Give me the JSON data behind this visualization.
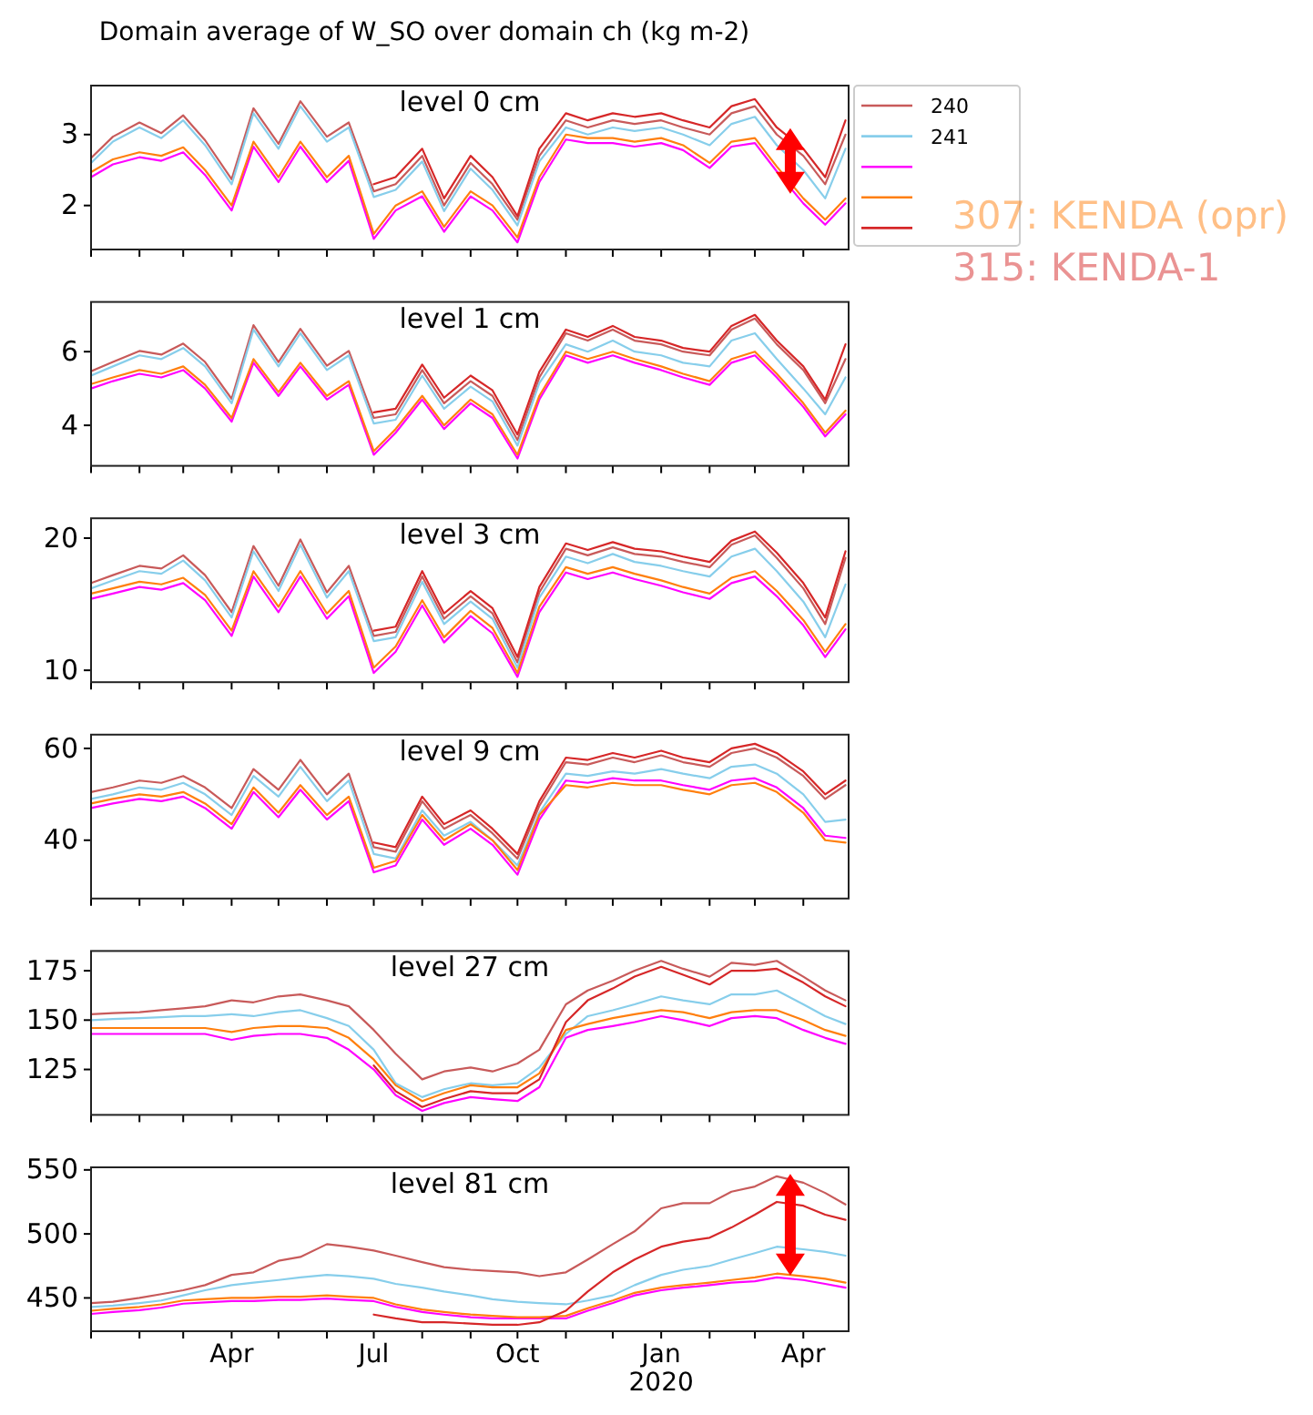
{
  "chart_data": [
    {
      "type": "line",
      "title": "Domain average of W_SO over domain ch (kg m-2)",
      "subtitle": "level 0 cm",
      "legend": "right",
      "tick_labels": "y",
      "x": [
        "2019-01-01",
        "2019-01-15",
        "2019-02-01",
        "2019-02-15",
        "2019-03-01",
        "2019-03-15",
        "2019-04-01",
        "2019-04-15",
        "2019-05-01",
        "2019-05-15",
        "2019-06-01",
        "2019-06-15",
        "2019-07-01",
        "2019-07-15",
        "2019-08-01",
        "2019-08-15",
        "2019-09-01",
        "2019-09-15",
        "2019-10-01",
        "2019-10-15",
        "2019-11-01",
        "2019-11-15",
        "2019-12-01",
        "2019-12-15",
        "2020-01-01",
        "2020-01-15",
        "2020-02-01",
        "2020-02-15",
        "2020-03-01",
        "2020-03-15",
        "2020-04-01",
        "2020-04-15",
        "2020-04-28"
      ],
      "xlim": [
        "2019-01-01",
        "2020-04-30"
      ],
      "xticks": [
        {
          "value": "2019-01-01",
          "label": null
        },
        {
          "value": "2019-02-01",
          "label": null
        },
        {
          "value": "2019-03-01",
          "label": null
        },
        {
          "value": "2019-04-01",
          "label": null
        },
        {
          "value": "2019-05-01",
          "label": null
        },
        {
          "value": "2019-06-01",
          "label": null
        },
        {
          "value": "2019-07-01",
          "label": null
        },
        {
          "value": "2019-08-01",
          "label": null
        },
        {
          "value": "2019-09-01",
          "label": null
        },
        {
          "value": "2019-10-01",
          "label": null
        },
        {
          "value": "2019-11-01",
          "label": null
        },
        {
          "value": "2019-12-01",
          "label": null
        },
        {
          "value": "2020-01-01",
          "label": null
        },
        {
          "value": "2020-02-01",
          "label": null
        },
        {
          "value": "2020-03-01",
          "label": null
        },
        {
          "value": "2020-04-01",
          "label": null
        }
      ],
      "ylim": [
        1.38,
        3.69
      ],
      "yticks": [
        2,
        3
      ],
      "series": [
        {
          "name": "240",
          "color": "#c85a5a",
          "values": [
            2.67,
            2.97,
            3.17,
            3.02,
            3.27,
            2.92,
            2.37,
            3.37,
            2.87,
            3.47,
            2.97,
            3.17,
            2.2,
            2.3,
            2.7,
            2.0,
            2.6,
            2.3,
            1.8,
            2.7,
            3.2,
            3.1,
            3.2,
            3.15,
            3.2,
            3.1,
            3.0,
            3.3,
            3.4,
            3.0,
            2.7,
            2.3,
            3.0
          ]
        },
        {
          "name": "241",
          "color": "#87ceeb",
          "values": [
            2.6,
            2.9,
            3.1,
            2.95,
            3.2,
            2.85,
            2.3,
            3.3,
            2.8,
            3.4,
            2.9,
            3.1,
            2.12,
            2.22,
            2.62,
            1.92,
            2.52,
            2.22,
            1.72,
            2.62,
            3.1,
            3.0,
            3.1,
            3.05,
            3.1,
            3.0,
            2.85,
            3.15,
            3.25,
            2.85,
            2.5,
            2.1,
            2.8
          ]
        },
        {
          "color": "#ff00ff",
          "values": [
            2.4,
            2.58,
            2.68,
            2.63,
            2.75,
            2.43,
            1.93,
            2.83,
            2.33,
            2.83,
            2.33,
            2.63,
            1.53,
            1.93,
            2.13,
            1.63,
            2.13,
            1.93,
            1.48,
            2.33,
            2.93,
            2.88,
            2.88,
            2.83,
            2.88,
            2.78,
            2.53,
            2.83,
            2.88,
            2.48,
            2.03,
            1.73,
            2.03
          ]
        },
        {
          "name": "307: KENDA (opr)",
          "color": "#ff7f0e",
          "values": [
            2.47,
            2.65,
            2.75,
            2.7,
            2.82,
            2.5,
            2.0,
            2.9,
            2.4,
            2.9,
            2.4,
            2.7,
            1.6,
            2.0,
            2.2,
            1.7,
            2.2,
            2.0,
            1.55,
            2.4,
            3.0,
            2.95,
            2.95,
            2.9,
            2.95,
            2.85,
            2.6,
            2.9,
            2.95,
            2.55,
            2.1,
            1.8,
            2.1
          ]
        },
        {
          "name": "315: KENDA-1",
          "color": "#d62728",
          "values": [
            null,
            null,
            null,
            null,
            null,
            null,
            null,
            null,
            null,
            null,
            null,
            null,
            2.3,
            2.4,
            2.8,
            2.1,
            2.7,
            2.4,
            1.85,
            2.8,
            3.3,
            3.2,
            3.3,
            3.25,
            3.3,
            3.2,
            3.1,
            3.4,
            3.5,
            3.1,
            2.8,
            2.4,
            3.2
          ]
        }
      ]
    },
    {
      "type": "line",
      "subtitle": "level 1 cm",
      "tick_labels": "y",
      "x": [
        "2019-01-01",
        "2019-01-15",
        "2019-02-01",
        "2019-02-15",
        "2019-03-01",
        "2019-03-15",
        "2019-04-01",
        "2019-04-15",
        "2019-05-01",
        "2019-05-15",
        "2019-06-01",
        "2019-06-15",
        "2019-07-01",
        "2019-07-15",
        "2019-08-01",
        "2019-08-15",
        "2019-09-01",
        "2019-09-15",
        "2019-10-01",
        "2019-10-15",
        "2019-11-01",
        "2019-11-15",
        "2019-12-01",
        "2019-12-15",
        "2020-01-01",
        "2020-01-15",
        "2020-02-01",
        "2020-02-15",
        "2020-03-01",
        "2020-03-15",
        "2020-04-01",
        "2020-04-15",
        "2020-04-28"
      ],
      "xlim": [
        "2019-01-01",
        "2020-04-30"
      ],
      "xticks": [
        {
          "value": "2019-01-01",
          "label": null
        },
        {
          "value": "2019-02-01",
          "label": null
        },
        {
          "value": "2019-03-01",
          "label": null
        },
        {
          "value": "2019-04-01",
          "label": null
        },
        {
          "value": "2019-05-01",
          "label": null
        },
        {
          "value": "2019-06-01",
          "label": null
        },
        {
          "value": "2019-07-01",
          "label": null
        },
        {
          "value": "2019-08-01",
          "label": null
        },
        {
          "value": "2019-09-01",
          "label": null
        },
        {
          "value": "2019-10-01",
          "label": null
        },
        {
          "value": "2019-11-01",
          "label": null
        },
        {
          "value": "2019-12-01",
          "label": null
        },
        {
          "value": "2020-01-01",
          "label": null
        },
        {
          "value": "2020-02-01",
          "label": null
        },
        {
          "value": "2020-03-01",
          "label": null
        },
        {
          "value": "2020-04-01",
          "label": null
        }
      ],
      "ylim": [
        2.9,
        7.35
      ],
      "yticks": [
        4,
        6
      ],
      "series": [
        {
          "color": "#c85a5a",
          "values": [
            5.47,
            5.72,
            6.02,
            5.92,
            6.22,
            5.72,
            4.72,
            6.72,
            5.72,
            6.62,
            5.62,
            6.02,
            4.2,
            4.3,
            5.5,
            4.6,
            5.2,
            4.8,
            3.6,
            5.3,
            6.5,
            6.3,
            6.6,
            6.3,
            6.2,
            6.0,
            5.9,
            6.6,
            6.9,
            6.2,
            5.5,
            4.6,
            5.8
          ]
        },
        {
          "color": "#87ceeb",
          "values": [
            5.35,
            5.6,
            5.9,
            5.8,
            6.1,
            5.6,
            4.6,
            6.6,
            5.6,
            6.5,
            5.5,
            5.9,
            4.05,
            4.15,
            5.35,
            4.45,
            5.05,
            4.65,
            3.45,
            5.15,
            6.2,
            6.0,
            6.3,
            6.0,
            5.9,
            5.7,
            5.6,
            6.3,
            6.5,
            5.8,
            5.0,
            4.3,
            5.3
          ]
        },
        {
          "color": "#ff00ff",
          "values": [
            5.0,
            5.2,
            5.4,
            5.3,
            5.5,
            5.0,
            4.1,
            5.7,
            4.8,
            5.6,
            4.7,
            5.1,
            3.2,
            3.8,
            4.7,
            3.9,
            4.6,
            4.2,
            3.1,
            4.7,
            5.9,
            5.7,
            5.9,
            5.7,
            5.5,
            5.3,
            5.1,
            5.7,
            5.9,
            5.3,
            4.5,
            3.7,
            4.3
          ]
        },
        {
          "color": "#ff7f0e",
          "values": [
            5.12,
            5.3,
            5.5,
            5.4,
            5.6,
            5.1,
            4.2,
            5.8,
            4.9,
            5.7,
            4.8,
            5.2,
            3.3,
            3.9,
            4.8,
            4.0,
            4.7,
            4.3,
            3.2,
            4.8,
            6.0,
            5.8,
            6.0,
            5.8,
            5.6,
            5.4,
            5.2,
            5.8,
            6.0,
            5.4,
            4.6,
            3.8,
            4.4
          ]
        },
        {
          "color": "#d62728",
          "values": [
            null,
            null,
            null,
            null,
            null,
            null,
            null,
            null,
            null,
            null,
            null,
            null,
            4.35,
            4.45,
            5.65,
            4.75,
            5.35,
            4.95,
            3.75,
            5.45,
            6.6,
            6.4,
            6.7,
            6.4,
            6.3,
            6.1,
            6.0,
            6.7,
            7.0,
            6.3,
            5.6,
            4.7,
            6.2
          ]
        }
      ]
    },
    {
      "type": "line",
      "subtitle": "level 3 cm",
      "tick_labels": "y",
      "x": [
        "2019-01-01",
        "2019-01-15",
        "2019-02-01",
        "2019-02-15",
        "2019-03-01",
        "2019-03-15",
        "2019-04-01",
        "2019-04-15",
        "2019-05-01",
        "2019-05-15",
        "2019-06-01",
        "2019-06-15",
        "2019-07-01",
        "2019-07-15",
        "2019-08-01",
        "2019-08-15",
        "2019-09-01",
        "2019-09-15",
        "2019-10-01",
        "2019-10-15",
        "2019-11-01",
        "2019-11-15",
        "2019-12-01",
        "2019-12-15",
        "2020-01-01",
        "2020-01-15",
        "2020-02-01",
        "2020-02-15",
        "2020-03-01",
        "2020-03-15",
        "2020-04-01",
        "2020-04-15",
        "2020-04-28"
      ],
      "xlim": [
        "2019-01-01",
        "2020-04-30"
      ],
      "xticks": [
        {
          "value": "2019-01-01",
          "label": null
        },
        {
          "value": "2019-02-01",
          "label": null
        },
        {
          "value": "2019-03-01",
          "label": null
        },
        {
          "value": "2019-04-01",
          "label": null
        },
        {
          "value": "2019-05-01",
          "label": null
        },
        {
          "value": "2019-06-01",
          "label": null
        },
        {
          "value": "2019-07-01",
          "label": null
        },
        {
          "value": "2019-08-01",
          "label": null
        },
        {
          "value": "2019-09-01",
          "label": null
        },
        {
          "value": "2019-10-01",
          "label": null
        },
        {
          "value": "2019-11-01",
          "label": null
        },
        {
          "value": "2019-12-01",
          "label": null
        },
        {
          "value": "2020-01-01",
          "label": null
        },
        {
          "value": "2020-02-01",
          "label": null
        },
        {
          "value": "2020-03-01",
          "label": null
        },
        {
          "value": "2020-04-01",
          "label": null
        }
      ],
      "ylim": [
        9.1,
        21.5
      ],
      "yticks": [
        10,
        20
      ],
      "series": [
        {
          "color": "#c85a5a",
          "values": [
            16.6,
            17.2,
            17.9,
            17.7,
            18.7,
            17.2,
            14.4,
            19.4,
            16.4,
            19.9,
            15.9,
            17.9,
            12.6,
            12.9,
            17.1,
            13.9,
            15.6,
            14.3,
            10.6,
            15.9,
            19.2,
            18.7,
            19.3,
            18.8,
            18.6,
            18.2,
            17.8,
            19.5,
            20.2,
            18.5,
            16.2,
            13.5,
            18.5
          ]
        },
        {
          "color": "#87ceeb",
          "values": [
            16.2,
            16.8,
            17.5,
            17.3,
            18.3,
            16.8,
            14,
            19,
            16,
            19.5,
            15.5,
            17.5,
            12.2,
            12.5,
            16.7,
            13.5,
            15.2,
            13.9,
            10.2,
            15.5,
            18.6,
            18.1,
            18.8,
            18.2,
            17.9,
            17.5,
            17.1,
            18.6,
            19.2,
            17.5,
            15.2,
            12.5,
            16.5
          ]
        },
        {
          "color": "#ff00ff",
          "values": [
            15.4,
            15.8,
            16.3,
            16.1,
            16.6,
            15.3,
            12.6,
            17.1,
            14.4,
            17.1,
            13.9,
            15.6,
            9.8,
            11.4,
            14.9,
            12.1,
            14.1,
            12.8,
            9.5,
            14.4,
            17.4,
            16.9,
            17.4,
            16.9,
            16.4,
            15.9,
            15.4,
            16.6,
            17.1,
            15.6,
            13.4,
            11.0,
            13.1
          ]
        },
        {
          "color": "#ff7f0e",
          "values": [
            15.8,
            16.2,
            16.7,
            16.5,
            17,
            15.7,
            13,
            17.5,
            14.8,
            17.5,
            14.3,
            16,
            10.2,
            11.8,
            15.3,
            12.5,
            14.5,
            13.2,
            9.8,
            14.8,
            17.8,
            17.3,
            17.8,
            17.3,
            16.8,
            16.3,
            15.8,
            17,
            17.5,
            16,
            13.8,
            11.4,
            13.5
          ]
        },
        {
          "color": "#d62728",
          "values": [
            null,
            null,
            null,
            null,
            null,
            null,
            null,
            null,
            null,
            null,
            null,
            null,
            13.0,
            13.3,
            17.5,
            14.3,
            16.0,
            14.7,
            11.0,
            16.3,
            19.6,
            19.1,
            19.7,
            19.2,
            19,
            18.6,
            18.2,
            19.8,
            20.5,
            18.9,
            16.6,
            14,
            19
          ]
        }
      ]
    },
    {
      "type": "line",
      "subtitle": "level 9 cm",
      "tick_labels": "y",
      "x": [
        "2019-01-01",
        "2019-01-15",
        "2019-02-01",
        "2019-02-15",
        "2019-03-01",
        "2019-03-15",
        "2019-04-01",
        "2019-04-15",
        "2019-05-01",
        "2019-05-15",
        "2019-06-01",
        "2019-06-15",
        "2019-07-01",
        "2019-07-15",
        "2019-08-01",
        "2019-08-15",
        "2019-09-01",
        "2019-09-15",
        "2019-10-01",
        "2019-10-15",
        "2019-11-01",
        "2019-11-15",
        "2019-12-01",
        "2019-12-15",
        "2020-01-01",
        "2020-01-15",
        "2020-02-01",
        "2020-02-15",
        "2020-03-01",
        "2020-03-15",
        "2020-04-01",
        "2020-04-15",
        "2020-04-28"
      ],
      "xlim": [
        "2019-01-01",
        "2020-04-30"
      ],
      "xticks": [
        {
          "value": "2019-01-01",
          "label": null
        },
        {
          "value": "2019-02-01",
          "label": null
        },
        {
          "value": "2019-03-01",
          "label": null
        },
        {
          "value": "2019-04-01",
          "label": null
        },
        {
          "value": "2019-05-01",
          "label": null
        },
        {
          "value": "2019-06-01",
          "label": null
        },
        {
          "value": "2019-07-01",
          "label": null
        },
        {
          "value": "2019-08-01",
          "label": null
        },
        {
          "value": "2019-09-01",
          "label": null
        },
        {
          "value": "2019-10-01",
          "label": null
        },
        {
          "value": "2019-11-01",
          "label": null
        },
        {
          "value": "2019-12-01",
          "label": null
        },
        {
          "value": "2020-01-01",
          "label": null
        },
        {
          "value": "2020-02-01",
          "label": null
        },
        {
          "value": "2020-03-01",
          "label": null
        },
        {
          "value": "2020-04-01",
          "label": null
        }
      ],
      "ylim": [
        27.3,
        63
      ],
      "yticks": [
        40,
        60
      ],
      "series": [
        {
          "color": "#c85a5a",
          "values": [
            50.5,
            51.5,
            53,
            52.5,
            54,
            51.5,
            47,
            55.5,
            51,
            57.5,
            50,
            54.5,
            38.5,
            37.5,
            48.5,
            42.5,
            45.5,
            41.5,
            36,
            47.5,
            57,
            56.5,
            58,
            57,
            58.5,
            57,
            56,
            59,
            60,
            58,
            54,
            49,
            52
          ]
        },
        {
          "color": "#87ceeb",
          "values": [
            49,
            50,
            51.5,
            51,
            52.5,
            50,
            45.5,
            54,
            49.5,
            56,
            48.5,
            53,
            37,
            36,
            46.5,
            41,
            44,
            40,
            34.5,
            46,
            54.5,
            54,
            55,
            54.5,
            55.5,
            54.5,
            53.5,
            56,
            56.5,
            54.5,
            50,
            44,
            44.5
          ]
        },
        {
          "color": "#ff00ff",
          "values": [
            47,
            48,
            49,
            48.5,
            49.5,
            47,
            42.5,
            50.5,
            45,
            51,
            44.5,
            48.5,
            33,
            34.5,
            44.5,
            39,
            42.5,
            39,
            32.5,
            44.5,
            53,
            52.5,
            53.5,
            53,
            53,
            52,
            51,
            53,
            53.5,
            51.5,
            47,
            41,
            40.5
          ]
        },
        {
          "color": "#ff7f0e",
          "values": [
            48,
            49,
            50,
            49.5,
            50.5,
            48,
            43.5,
            51.5,
            46,
            52,
            45.5,
            49.5,
            34,
            35.5,
            45.5,
            40,
            43.5,
            40,
            33.5,
            45.5,
            52,
            51.5,
            52.5,
            52,
            52,
            51,
            50,
            52,
            52.5,
            50.5,
            46,
            40,
            39.5
          ]
        },
        {
          "color": "#d62728",
          "values": [
            null,
            null,
            null,
            null,
            null,
            null,
            null,
            null,
            null,
            null,
            null,
            null,
            39.5,
            38.5,
            49.5,
            43.5,
            46.5,
            42.5,
            37,
            48.5,
            58,
            57.5,
            59,
            58,
            59.5,
            58,
            57,
            60,
            61,
            59,
            55,
            50,
            53
          ]
        }
      ]
    },
    {
      "type": "line",
      "subtitle": "level 27 cm",
      "tick_labels": "y",
      "x": [
        "2019-01-01",
        "2019-01-15",
        "2019-02-01",
        "2019-02-15",
        "2019-03-01",
        "2019-03-15",
        "2019-04-01",
        "2019-04-15",
        "2019-05-01",
        "2019-05-15",
        "2019-06-01",
        "2019-06-15",
        "2019-07-01",
        "2019-07-15",
        "2019-08-01",
        "2019-08-15",
        "2019-09-01",
        "2019-09-15",
        "2019-10-01",
        "2019-10-15",
        "2019-11-01",
        "2019-11-15",
        "2019-12-01",
        "2019-12-15",
        "2020-01-01",
        "2020-01-15",
        "2020-02-01",
        "2020-02-15",
        "2020-03-01",
        "2020-03-15",
        "2020-04-01",
        "2020-04-15",
        "2020-04-28"
      ],
      "xlim": [
        "2019-01-01",
        "2020-04-30"
      ],
      "xticks": [
        {
          "value": "2019-01-01",
          "label": null
        },
        {
          "value": "2019-02-01",
          "label": null
        },
        {
          "value": "2019-03-01",
          "label": null
        },
        {
          "value": "2019-04-01",
          "label": null
        },
        {
          "value": "2019-05-01",
          "label": null
        },
        {
          "value": "2019-06-01",
          "label": null
        },
        {
          "value": "2019-07-01",
          "label": null
        },
        {
          "value": "2019-08-01",
          "label": null
        },
        {
          "value": "2019-09-01",
          "label": null
        },
        {
          "value": "2019-10-01",
          "label": null
        },
        {
          "value": "2019-11-01",
          "label": null
        },
        {
          "value": "2019-12-01",
          "label": null
        },
        {
          "value": "2020-01-01",
          "label": null
        },
        {
          "value": "2020-02-01",
          "label": null
        },
        {
          "value": "2020-03-01",
          "label": null
        },
        {
          "value": "2020-04-01",
          "label": null
        }
      ],
      "ylim": [
        102,
        185
      ],
      "yticks": [
        125,
        150,
        175
      ],
      "series": [
        {
          "color": "#c85a5a",
          "values": [
            153,
            153.5,
            154,
            155,
            156,
            157,
            160,
            159,
            162,
            163,
            160,
            157,
            145,
            133,
            120,
            124,
            126,
            124,
            128,
            135,
            158,
            165,
            170,
            175,
            180,
            176,
            172,
            179,
            178,
            180,
            172,
            165,
            160
          ]
        },
        {
          "color": "#87ceeb",
          "values": [
            150,
            150.5,
            151,
            151.5,
            152,
            152,
            153,
            152,
            154,
            155,
            151,
            147,
            135,
            118,
            111,
            115,
            118,
            117,
            118,
            126,
            143,
            152,
            155,
            158,
            162,
            160,
            158,
            163,
            163,
            165,
            158,
            152,
            148
          ]
        },
        {
          "color": "#ff00ff",
          "values": [
            143,
            143,
            143,
            143,
            143,
            143,
            140,
            142,
            143,
            143,
            141,
            135,
            125,
            112,
            104,
            108,
            111,
            110,
            109,
            116,
            141,
            145,
            147,
            149,
            152,
            150,
            147,
            151,
            152,
            151,
            145,
            141,
            138
          ]
        },
        {
          "color": "#ff7f0e",
          "values": [
            146,
            146,
            146,
            146,
            146,
            146,
            144,
            146,
            147,
            147,
            146,
            141,
            130,
            117,
            109,
            113,
            117,
            116,
            116,
            123,
            145,
            148,
            151,
            153,
            155,
            154,
            151,
            154,
            155,
            155,
            150,
            145,
            142
          ]
        },
        {
          "color": "#d62728",
          "values": [
            null,
            null,
            null,
            null,
            null,
            null,
            null,
            null,
            null,
            null,
            null,
            null,
            127,
            114,
            106,
            110,
            114,
            113,
            113,
            120,
            149,
            160,
            166,
            172,
            177,
            173,
            168,
            175,
            175,
            176,
            169,
            162,
            157
          ]
        }
      ]
    },
    {
      "type": "line",
      "subtitle": "level 81 cm",
      "x": [
        "2019-01-01",
        "2019-01-15",
        "2019-02-01",
        "2019-02-15",
        "2019-03-01",
        "2019-03-15",
        "2019-04-01",
        "2019-04-15",
        "2019-05-01",
        "2019-05-15",
        "2019-06-01",
        "2019-06-15",
        "2019-07-01",
        "2019-07-15",
        "2019-08-01",
        "2019-08-15",
        "2019-09-01",
        "2019-09-15",
        "2019-10-01",
        "2019-10-15",
        "2019-11-01",
        "2019-11-15",
        "2019-12-01",
        "2019-12-15",
        "2020-01-01",
        "2020-01-15",
        "2020-02-01",
        "2020-02-15",
        "2020-03-01",
        "2020-03-15",
        "2020-04-01",
        "2020-04-15",
        "2020-04-28"
      ],
      "xlim": [
        "2019-01-01",
        "2020-04-30"
      ],
      "xticks": [
        {
          "value": "2019-01-01",
          "label": null
        },
        {
          "value": "2019-02-01",
          "label": null
        },
        {
          "value": "2019-03-01",
          "label": null
        },
        {
          "value": "2019-04-01",
          "label": "Apr"
        },
        {
          "value": "2019-05-01",
          "label": null
        },
        {
          "value": "2019-06-01",
          "label": null
        },
        {
          "value": "2019-07-01",
          "label": "Jul"
        },
        {
          "value": "2019-08-01",
          "label": null
        },
        {
          "value": "2019-09-01",
          "label": null
        },
        {
          "value": "2019-10-01",
          "label": "Oct"
        },
        {
          "value": "2019-11-01",
          "label": null
        },
        {
          "value": "2019-12-01",
          "label": null
        },
        {
          "value": "2020-01-01",
          "label": "Jan\n2020"
        },
        {
          "value": "2020-02-01",
          "label": null
        },
        {
          "value": "2020-03-01",
          "label": null
        },
        {
          "value": "2020-04-01",
          "label": "Apr"
        }
      ],
      "ylim": [
        424,
        552
      ],
      "yticks": [
        450,
        500,
        550
      ],
      "series": [
        {
          "color": "#c85a5a",
          "values": [
            446,
            447,
            450,
            453,
            456,
            460,
            468,
            470,
            479,
            482,
            492,
            490,
            487,
            483,
            478,
            474,
            472,
            471,
            470,
            467,
            470,
            480,
            492,
            502,
            520,
            524,
            524,
            533,
            537,
            545,
            540,
            532,
            523
          ]
        },
        {
          "color": "#87ceeb",
          "values": [
            443,
            444,
            446,
            448,
            452,
            456,
            460,
            462,
            464,
            466,
            468,
            467,
            465,
            461,
            458,
            455,
            452,
            449,
            447,
            446,
            445,
            448,
            452,
            460,
            468,
            472,
            475,
            480,
            485,
            490,
            488,
            486,
            483
          ]
        },
        {
          "color": "#ff00ff",
          "values": [
            437.5,
            439,
            440.5,
            442.5,
            445.5,
            446.5,
            447.5,
            447.5,
            448.5,
            448.5,
            449.5,
            448.5,
            447.5,
            443,
            439,
            437,
            435,
            434,
            434,
            434,
            434,
            440,
            446,
            452,
            456,
            458,
            460,
            462,
            463,
            466,
            464,
            461,
            458
          ]
        },
        {
          "color": "#ff7f0e",
          "values": [
            440,
            441.5,
            443,
            445,
            448,
            449,
            450,
            450,
            451,
            451,
            452,
            451,
            450,
            445,
            441,
            439,
            437,
            436,
            435,
            435,
            436,
            442,
            448,
            454,
            458,
            460,
            462,
            464,
            466,
            469,
            467,
            465,
            462
          ]
        },
        {
          "color": "#d62728",
          "values": [
            null,
            null,
            null,
            null,
            null,
            null,
            null,
            null,
            null,
            null,
            null,
            null,
            437,
            434,
            431,
            431,
            430,
            429,
            429,
            431,
            440,
            455,
            470,
            480,
            490,
            494,
            497,
            505,
            515,
            525,
            522,
            515,
            511
          ]
        }
      ]
    }
  ]
}
